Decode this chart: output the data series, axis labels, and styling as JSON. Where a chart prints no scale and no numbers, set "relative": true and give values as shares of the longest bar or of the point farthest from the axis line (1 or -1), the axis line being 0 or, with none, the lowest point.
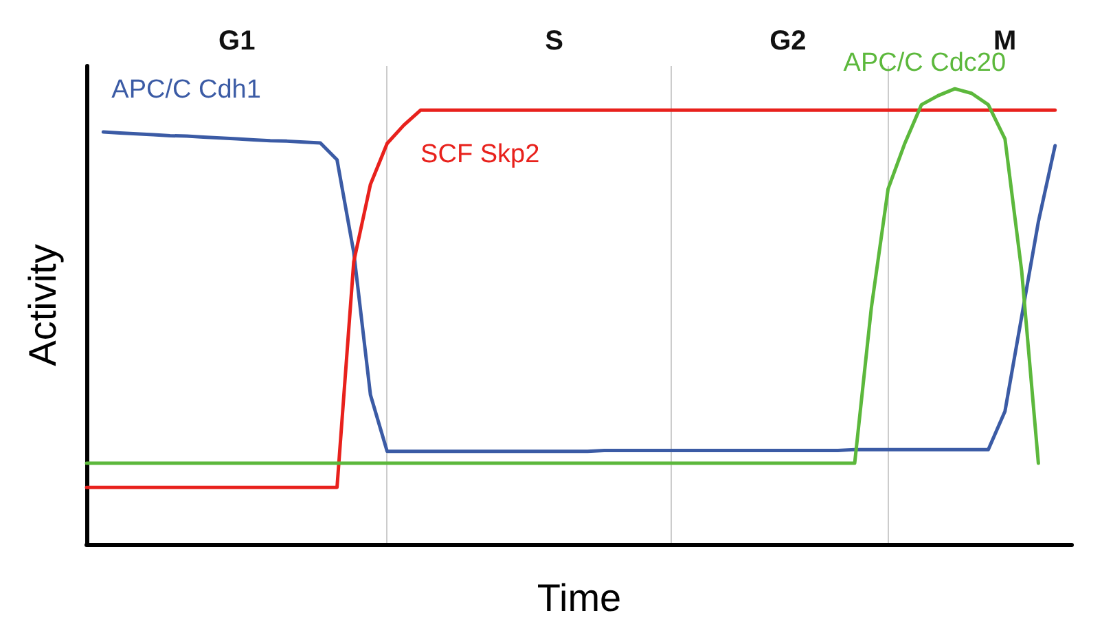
{
  "chart_data": {
    "type": "line",
    "relative": true,
    "xlabel": "Time",
    "ylabel": "Activity",
    "grid": "x",
    "legend": false,
    "marker": "none",
    "line_style": "solid",
    "categories": [
      null,
      null,
      null,
      null,
      null,
      null,
      null,
      null,
      null,
      "G1",
      null,
      null,
      null,
      null,
      null,
      null,
      null,
      null,
      null,
      null,
      null,
      null,
      null,
      null,
      null,
      null,
      null,
      null,
      "S",
      null,
      null,
      null,
      null,
      null,
      null,
      null,
      null,
      null,
      null,
      null,
      null,
      null,
      "G2",
      null,
      null,
      null,
      null,
      null,
      null,
      null,
      null,
      null,
      null,
      null,
      null,
      "M",
      null,
      null,
      null,
      null
    ],
    "series": [
      {
        "name": "APC/C Cdh1",
        "color": "#3b5ba5",
        "values": [
          null,
          0.905,
          0.903,
          0.901,
          0.899,
          0.897,
          0.896,
          0.894,
          0.892,
          0.89,
          0.888,
          0.886,
          0.885,
          0.883,
          0.881,
          0.844,
          0.641,
          0.328,
          0.204,
          0.204,
          0.204,
          0.204,
          0.204,
          0.204,
          0.204,
          0.204,
          0.204,
          0.204,
          0.204,
          0.204,
          0.204,
          0.206,
          0.206,
          0.206,
          0.206,
          0.206,
          0.206,
          0.206,
          0.206,
          0.206,
          0.206,
          0.206,
          0.206,
          0.206,
          0.206,
          0.206,
          0.208,
          0.208,
          0.208,
          0.208,
          0.208,
          0.208,
          0.208,
          0.208,
          0.208,
          0.292,
          0.5,
          0.708,
          0.875,
          null
        ]
      },
      {
        "name": "SCF Skp2",
        "color": "#e8211c",
        "values": [
          0.125,
          0.125,
          0.125,
          0.125,
          0.125,
          0.125,
          0.125,
          0.125,
          0.125,
          0.125,
          0.125,
          0.125,
          0.125,
          0.125,
          0.125,
          0.125,
          0.62,
          0.79,
          0.88,
          0.92,
          0.953,
          0.953,
          0.953,
          0.953,
          0.953,
          0.953,
          0.953,
          0.953,
          0.953,
          0.953,
          0.953,
          0.953,
          0.953,
          0.953,
          0.953,
          0.953,
          0.953,
          0.953,
          0.953,
          0.953,
          0.953,
          0.953,
          0.953,
          0.953,
          0.953,
          0.953,
          0.953,
          0.953,
          0.953,
          0.953,
          0.953,
          0.953,
          0.953,
          0.953,
          0.953,
          0.953,
          0.953,
          0.953,
          0.953,
          null
        ]
      },
      {
        "name": "APC/C Cdc20",
        "color": "#5cb83c",
        "values": [
          0.178,
          0.178,
          0.178,
          0.178,
          0.178,
          0.178,
          0.178,
          0.178,
          0.178,
          0.178,
          0.178,
          0.178,
          0.178,
          0.178,
          0.178,
          0.178,
          0.178,
          0.178,
          0.178,
          0.178,
          0.178,
          0.178,
          0.178,
          0.178,
          0.178,
          0.178,
          0.178,
          0.178,
          0.178,
          0.178,
          0.178,
          0.178,
          0.178,
          0.178,
          0.178,
          0.178,
          0.178,
          0.178,
          0.178,
          0.178,
          0.178,
          0.178,
          0.178,
          0.178,
          0.178,
          0.178,
          0.178,
          0.52,
          0.78,
          0.88,
          0.965,
          0.985,
          1,
          0.99,
          0.965,
          0.89,
          0.6,
          0.178,
          null,
          null
        ]
      }
    ]
  }
}
